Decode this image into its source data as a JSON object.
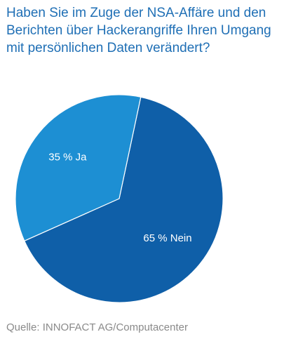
{
  "title_lines": [
    "Haben Sie im Zuge der NSA-Affäre und den",
    "Berichten über Hackerangriffe Ihren Umgang",
    "mit persönlichen Daten verändert?"
  ],
  "source": "Quelle: INNOFACT AG/Computacenter",
  "colors": {
    "title": "#1f6fb5",
    "nein": "#0f5fa8",
    "ja": "#1d8fd3",
    "source": "#8a8a8a"
  },
  "chart_data": {
    "type": "pie",
    "title": "Haben Sie im Zuge der NSA-Affäre und den Berichten über Hackerangriffe Ihren Umgang mit persönlichen Daten verändert?",
    "slices": [
      {
        "label": "Nein",
        "value": 65,
        "data_label": "65 % Nein",
        "color": "#0f5fa8"
      },
      {
        "label": "Ja",
        "value": 35,
        "data_label": "35 % Ja",
        "color": "#1d8fd3"
      }
    ]
  }
}
